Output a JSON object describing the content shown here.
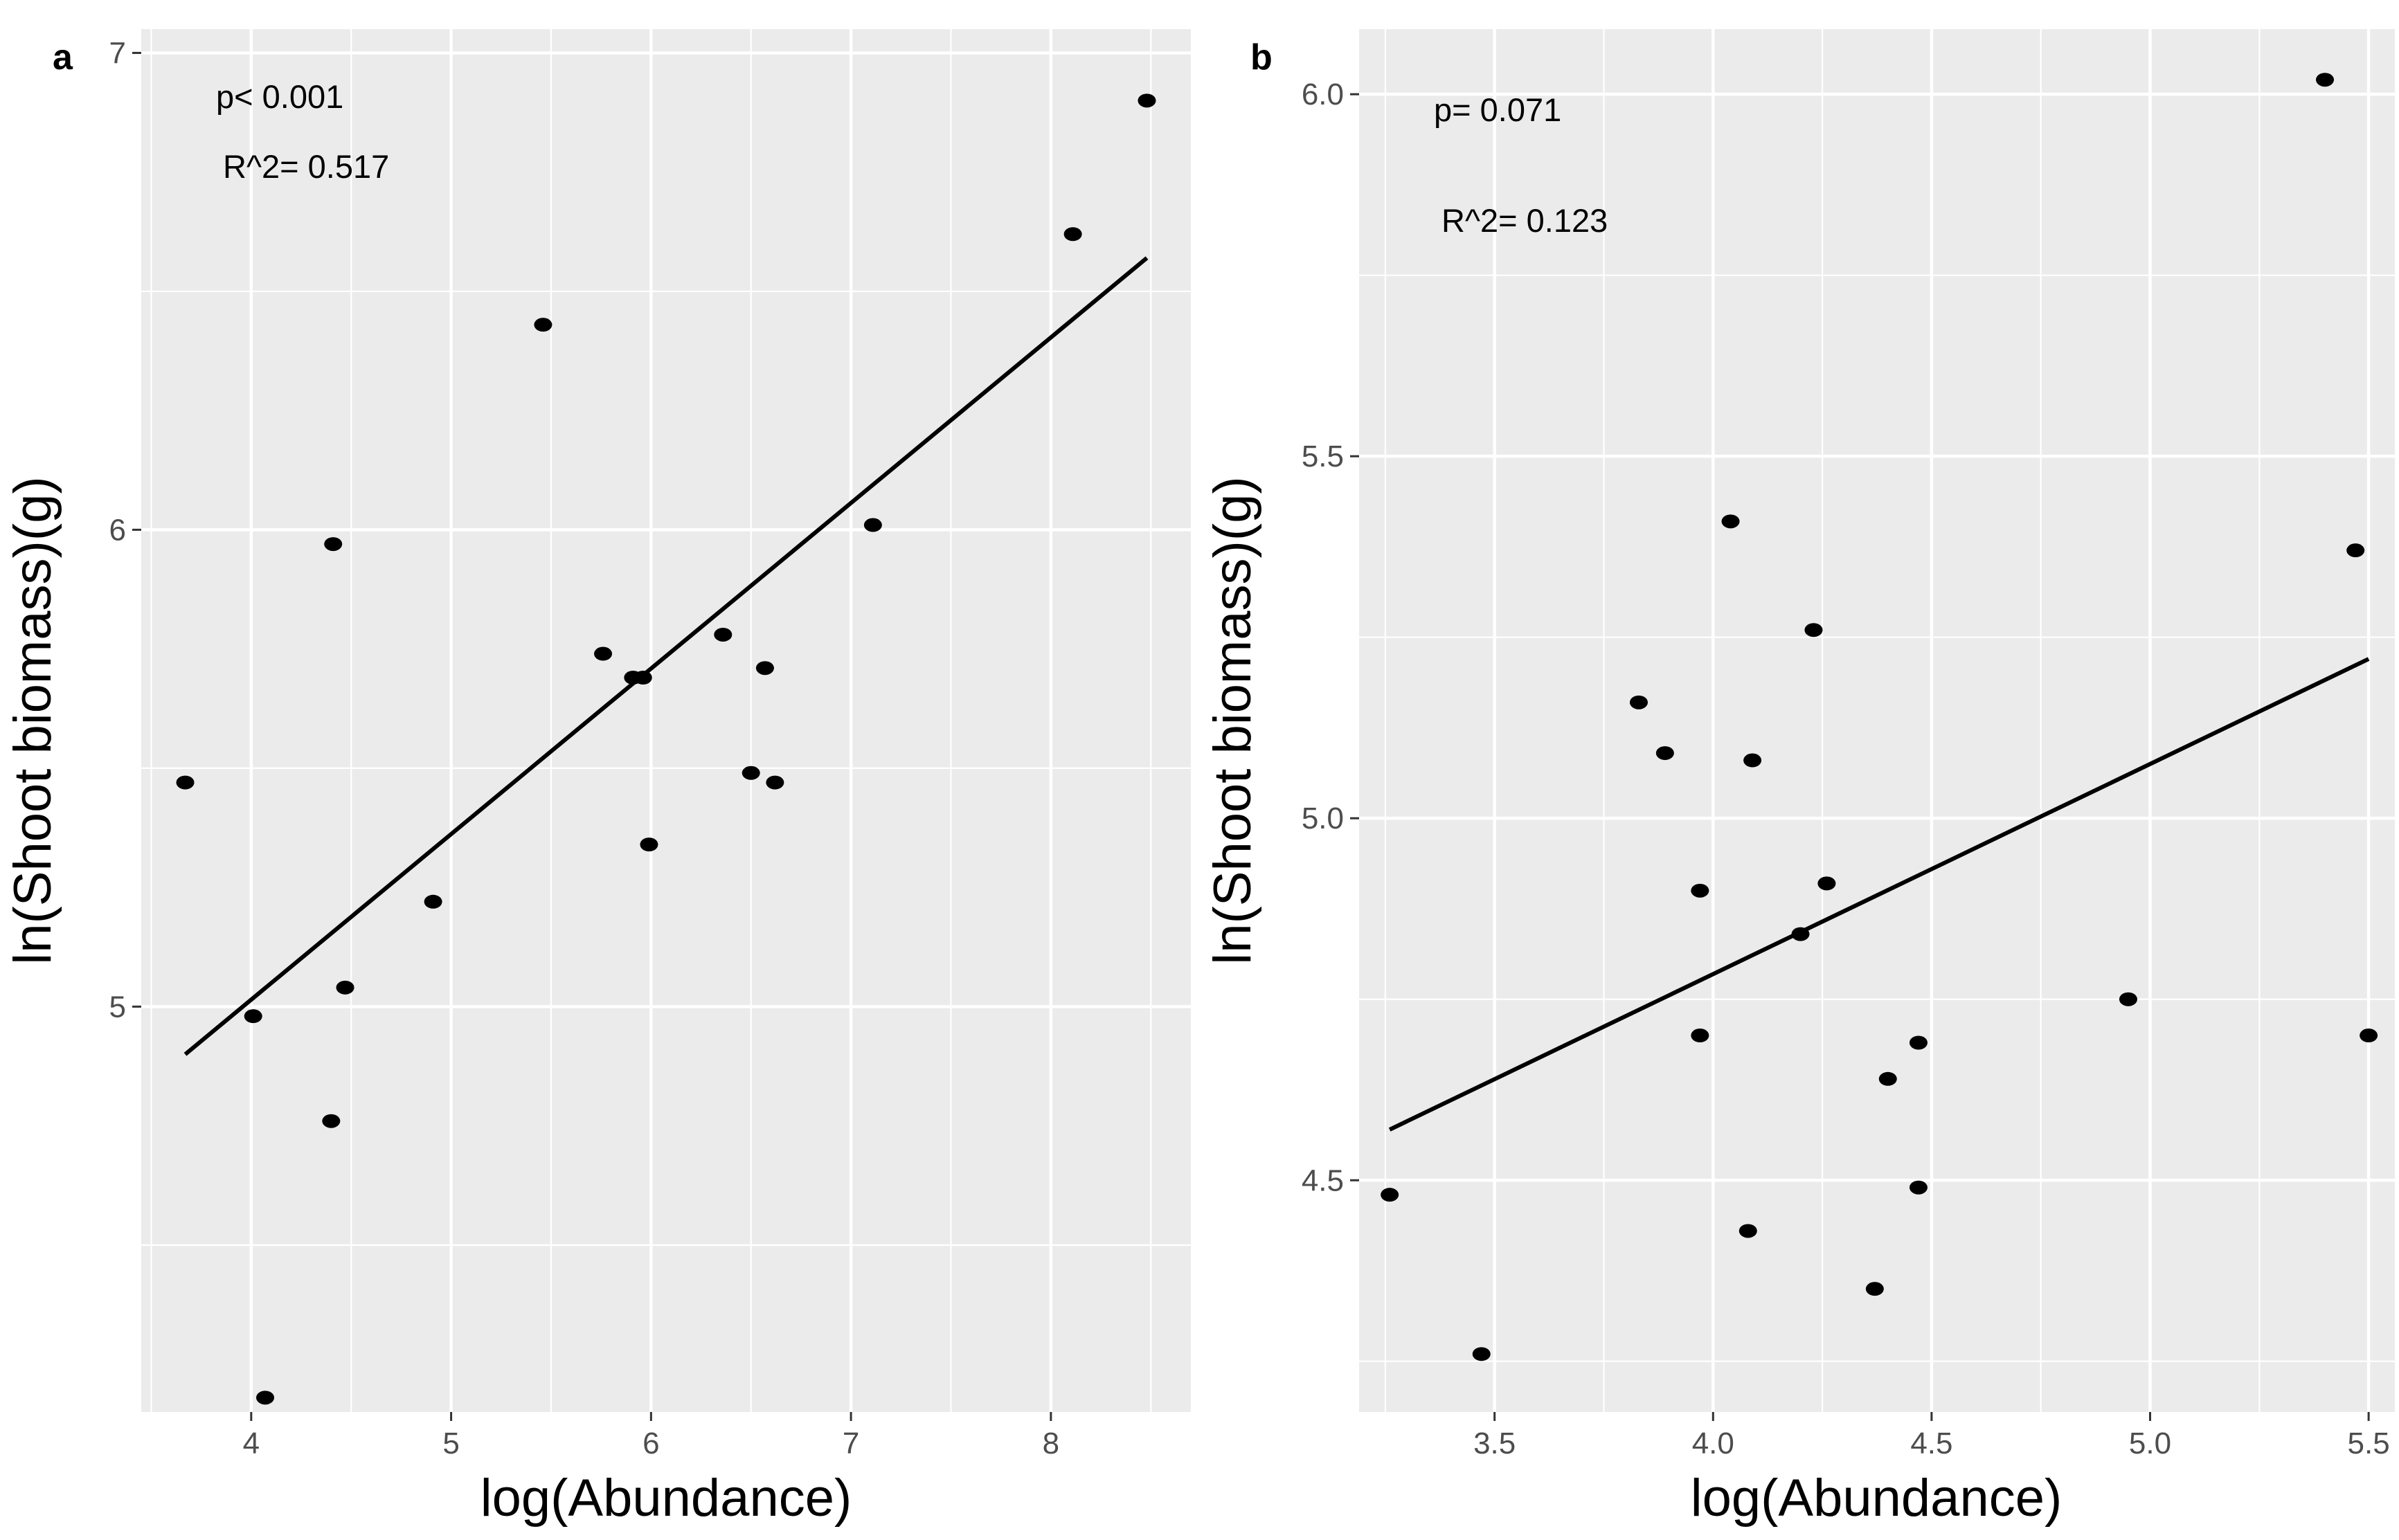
{
  "chart_data": [
    {
      "type": "scatter",
      "panel_label": "a",
      "xlabel": "log(Abundance)",
      "ylabel": "ln(Shoot biomass)(g)",
      "xlim": [
        3.45,
        8.7
      ],
      "ylim": [
        4.15,
        7.05
      ],
      "xticks": [
        4,
        5,
        6,
        7,
        8
      ],
      "xtick_labels": [
        "4",
        "5",
        "6",
        "7",
        "8"
      ],
      "xminor": [
        3.5,
        4.5,
        5.5,
        6.5,
        7.5,
        8.5
      ],
      "yticks": [
        5,
        6,
        7
      ],
      "ytick_labels": [
        "5",
        "6",
        "7"
      ],
      "yminor": [
        4.5,
        5.5,
        6.5
      ],
      "grid": true,
      "annotations": [
        "p< 0.001",
        "R^2= 0.517"
      ],
      "points": [
        {
          "x": 3.67,
          "y": 5.47
        },
        {
          "x": 4.01,
          "y": 4.98
        },
        {
          "x": 4.07,
          "y": 4.18
        },
        {
          "x": 4.4,
          "y": 4.76
        },
        {
          "x": 4.41,
          "y": 5.97
        },
        {
          "x": 4.47,
          "y": 5.04
        },
        {
          "x": 4.91,
          "y": 5.22
        },
        {
          "x": 5.46,
          "y": 6.43
        },
        {
          "x": 5.76,
          "y": 5.74
        },
        {
          "x": 5.91,
          "y": 5.69
        },
        {
          "x": 5.96,
          "y": 5.69
        },
        {
          "x": 5.99,
          "y": 5.34
        },
        {
          "x": 6.36,
          "y": 5.78
        },
        {
          "x": 6.5,
          "y": 5.49
        },
        {
          "x": 6.57,
          "y": 5.71
        },
        {
          "x": 6.62,
          "y": 5.47
        },
        {
          "x": 7.11,
          "y": 6.01
        },
        {
          "x": 8.11,
          "y": 6.62
        },
        {
          "x": 8.48,
          "y": 6.9
        }
      ],
      "fit": {
        "x": [
          3.67,
          8.48
        ],
        "y": [
          4.9,
          6.57
        ]
      }
    },
    {
      "type": "scatter",
      "panel_label": "b",
      "xlabel": "log(Abundance)",
      "ylabel": "ln(Shoot biomass)(g)",
      "xlim": [
        3.19,
        5.56
      ],
      "ylim": [
        4.18,
        6.09
      ],
      "xticks": [
        3.5,
        4.0,
        4.5,
        5.0,
        5.5
      ],
      "xtick_labels": [
        "3.5",
        "4.0",
        "4.5",
        "5.0",
        "5.5"
      ],
      "xminor": [
        3.25,
        3.75,
        4.25,
        4.75,
        5.25
      ],
      "yticks": [
        4.5,
        5.0,
        5.5,
        6.0
      ],
      "ytick_labels": [
        "4.5",
        "5.0",
        "5.5",
        "6.0"
      ],
      "yminor": [
        4.25,
        4.75,
        5.25,
        5.75
      ],
      "grid": true,
      "annotations": [
        "p= 0.071",
        "R^2= 0.123"
      ],
      "points": [
        {
          "x": 3.26,
          "y": 4.48
        },
        {
          "x": 3.47,
          "y": 4.26
        },
        {
          "x": 3.83,
          "y": 5.16
        },
        {
          "x": 3.89,
          "y": 5.09
        },
        {
          "x": 3.97,
          "y": 4.9
        },
        {
          "x": 3.97,
          "y": 4.7
        },
        {
          "x": 4.04,
          "y": 5.41
        },
        {
          "x": 4.08,
          "y": 4.43
        },
        {
          "x": 4.09,
          "y": 5.08
        },
        {
          "x": 4.2,
          "y": 4.84
        },
        {
          "x": 4.23,
          "y": 5.26
        },
        {
          "x": 4.26,
          "y": 4.91
        },
        {
          "x": 4.37,
          "y": 4.35
        },
        {
          "x": 4.4,
          "y": 4.64
        },
        {
          "x": 4.47,
          "y": 4.69
        },
        {
          "x": 4.47,
          "y": 4.49
        },
        {
          "x": 4.95,
          "y": 4.75
        },
        {
          "x": 5.4,
          "y": 6.02
        },
        {
          "x": 5.47,
          "y": 5.37
        },
        {
          "x": 5.5,
          "y": 4.7
        }
      ],
      "fit": {
        "x": [
          3.26,
          5.5
        ],
        "y": [
          4.57,
          5.22
        ]
      }
    }
  ]
}
